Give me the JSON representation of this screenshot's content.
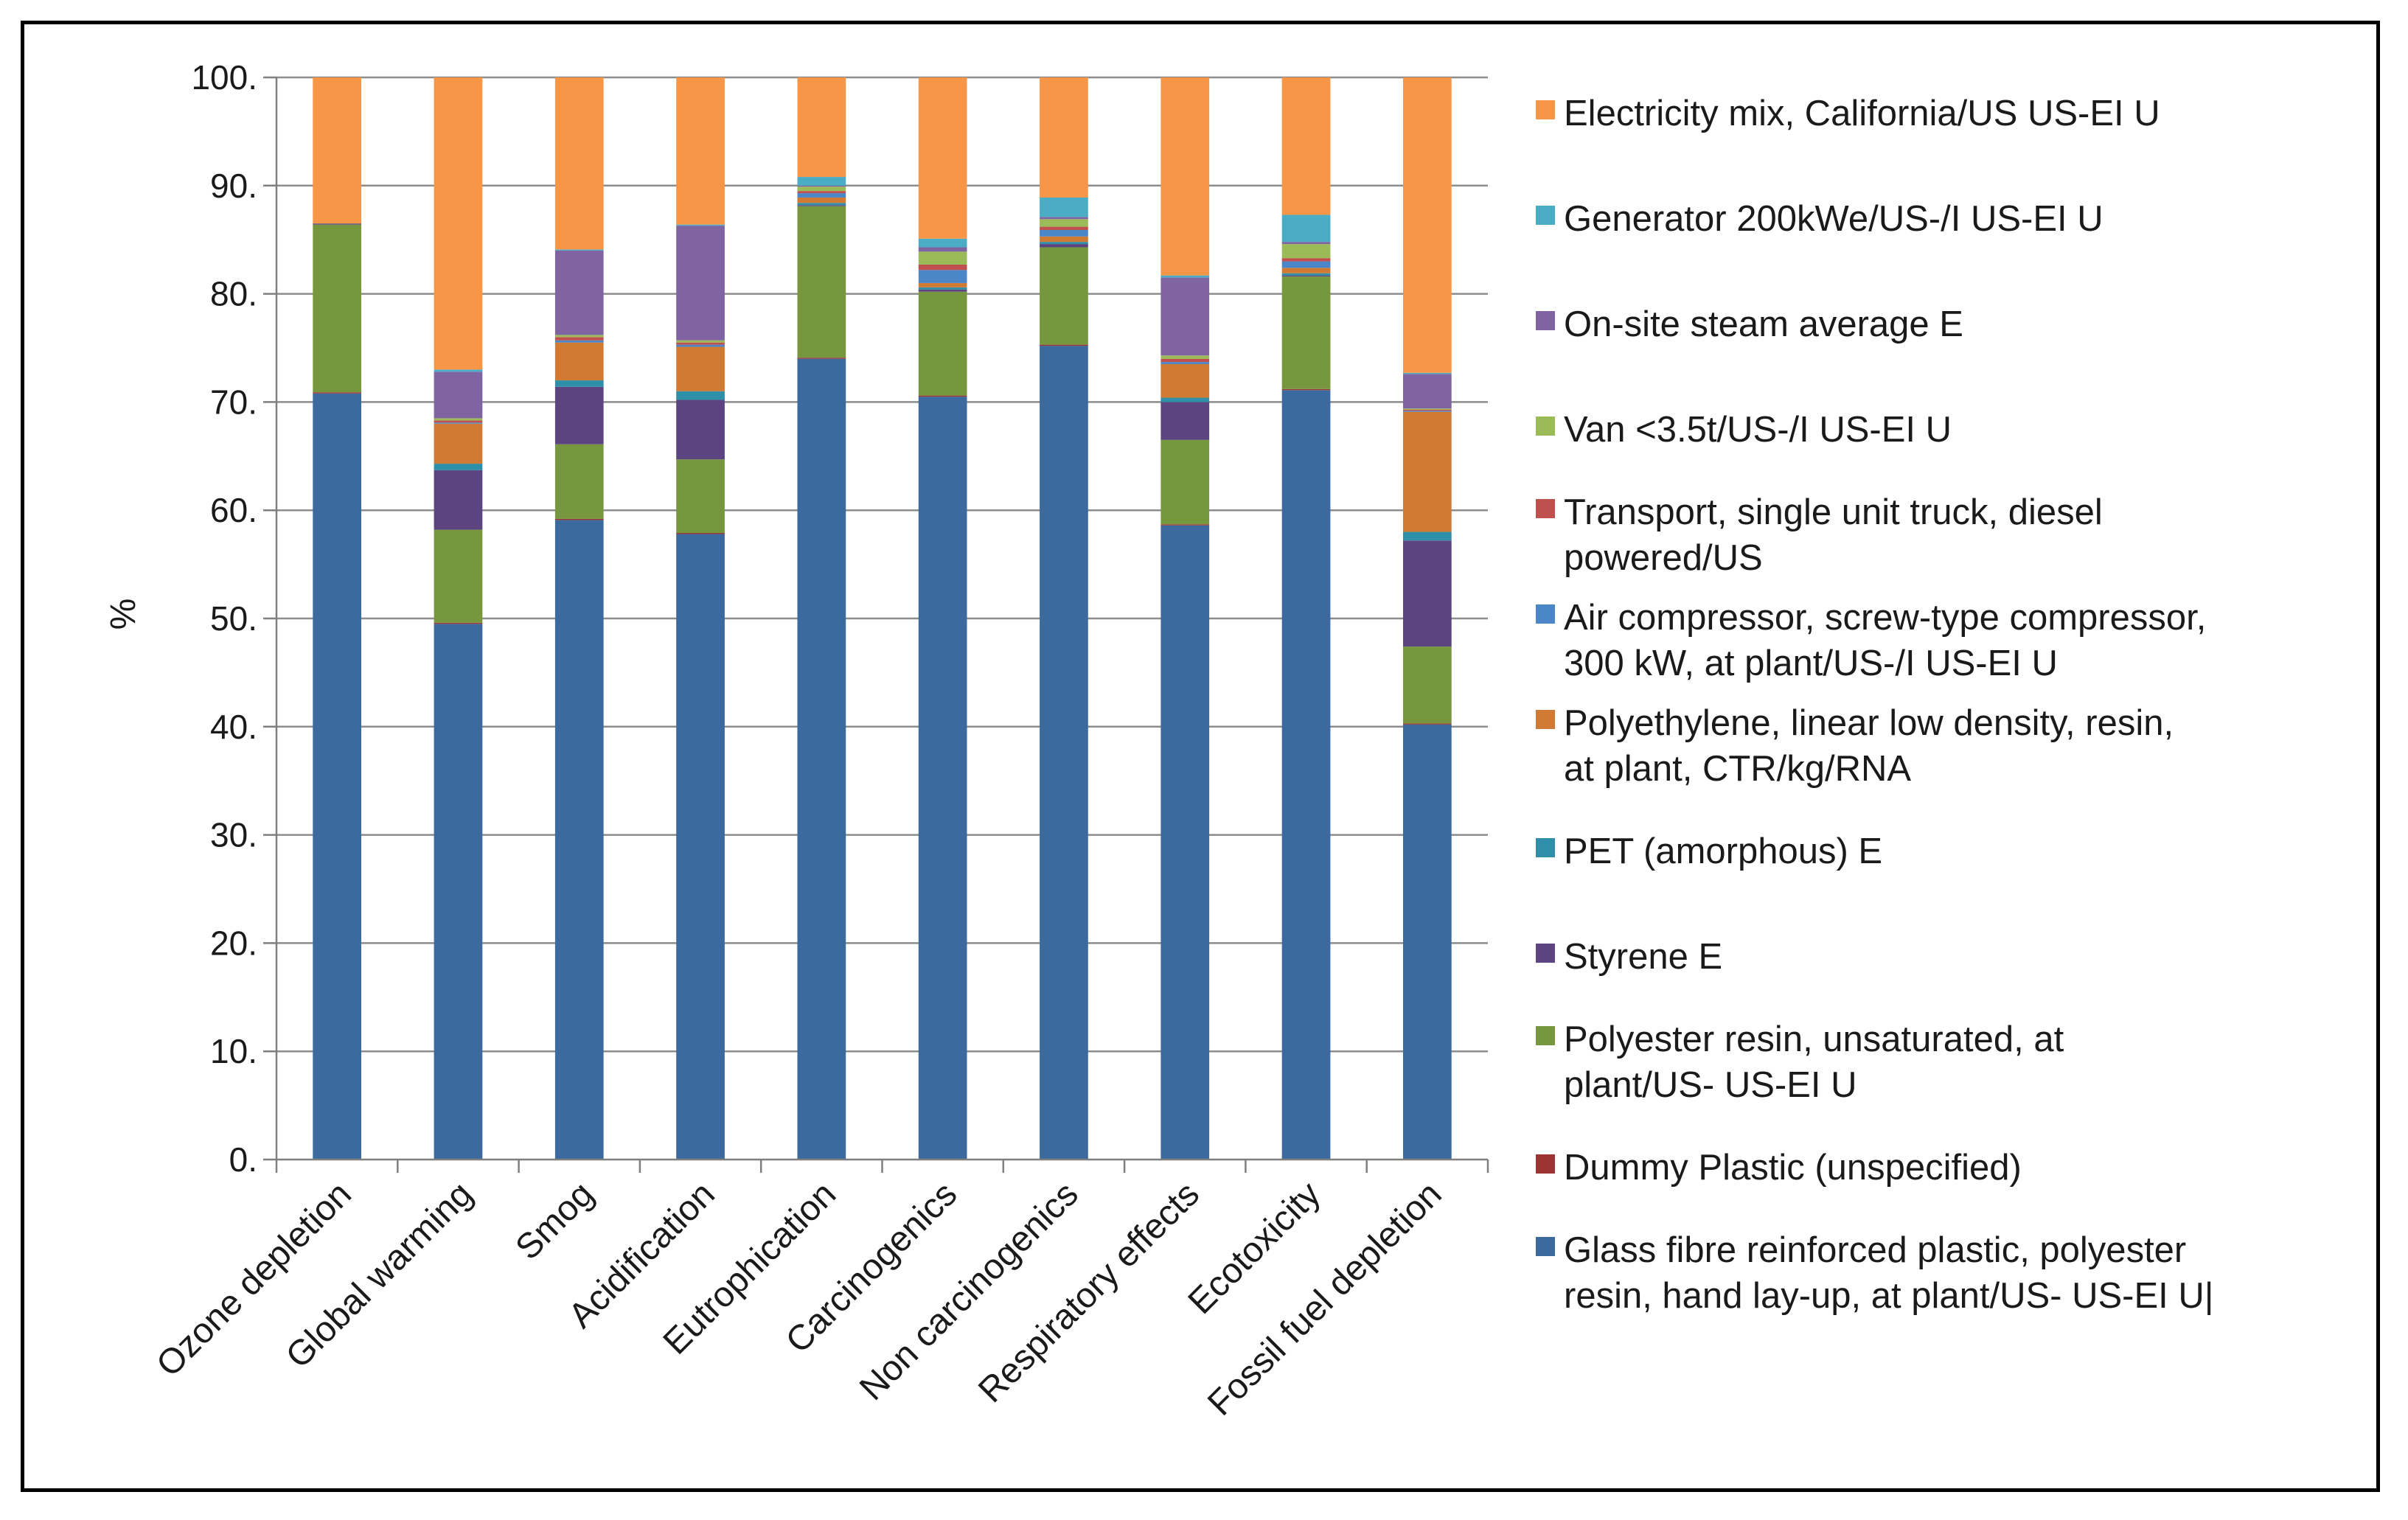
{
  "chart_data": {
    "type": "bar",
    "stacked": true,
    "title": "",
    "xlabel": "",
    "ylabel": "%",
    "ylim": [
      0,
      100
    ],
    "y_ticks": [
      "0.",
      "10.",
      "20.",
      "30.",
      "40.",
      "50.",
      "60.",
      "70.",
      "80.",
      "90.",
      "100."
    ],
    "grid": true,
    "legend_position": "right",
    "categories": [
      "Ozone depletion",
      "Global warming",
      "Smog",
      "Acidification",
      "Eutrophication",
      "Carcinogenics",
      "Non carcinogenics",
      "Respiratory effects",
      "Ecotoxicity",
      "Fossil fuel depletion"
    ],
    "series": [
      {
        "name": "Glass fibre reinforced plastic, polyester resin, hand lay-up, at plant/US- US-EI U|",
        "color": "#3d6a9e",
        "values": [
          70.8,
          49.5,
          59.1,
          57.8,
          74.0,
          70.5,
          75.2,
          58.6,
          71.1,
          40.2
        ]
      },
      {
        "name": "Dummy Plastic (unspecified)",
        "color": "#9c3434",
        "values": [
          0.1,
          0.1,
          0.1,
          0.1,
          0.1,
          0.1,
          0.1,
          0.1,
          0.1,
          0.1
        ]
      },
      {
        "name": "Polyester resin, unsaturated, at plant/US- US-EI U",
        "color": "#77973f",
        "values": [
          15.5,
          8.6,
          6.9,
          6.8,
          14.0,
          9.6,
          9.0,
          7.8,
          10.4,
          7.1
        ]
      },
      {
        "name": "Styrene E",
        "color": "#5c4480",
        "values": [
          0.1,
          5.5,
          5.3,
          5.5,
          0.1,
          0.2,
          0.3,
          3.5,
          0.1,
          9.8
        ]
      },
      {
        "name": "PET (amorphous) E",
        "color": "#2f8ea8",
        "values": [
          0.0,
          0.6,
          0.6,
          0.8,
          0.2,
          0.2,
          0.2,
          0.4,
          0.2,
          0.8
        ]
      },
      {
        "name": "Polyethylene, linear low density, resin, at plant, CTR/kg/RNA",
        "color": "#d17a33",
        "values": [
          0.0,
          3.7,
          3.5,
          4.1,
          0.5,
          0.4,
          0.5,
          3.1,
          0.5,
          11.1
        ]
      },
      {
        "name": "Air compressor, screw-type compressor, 300 kW, at plant/US-/I US-EI U",
        "color": "#4a86c8",
        "values": [
          0.0,
          0.1,
          0.2,
          0.2,
          0.4,
          1.2,
          0.6,
          0.2,
          0.6,
          0.1
        ]
      },
      {
        "name": "Transport, single unit truck, diesel powered/US",
        "color": "#c0504d",
        "values": [
          0.0,
          0.2,
          0.3,
          0.2,
          0.2,
          0.5,
          0.3,
          0.3,
          0.3,
          0.1
        ]
      },
      {
        "name": "Van <3.5t/US-/I US-EI U",
        "color": "#9bbb59",
        "values": [
          0.0,
          0.2,
          0.2,
          0.2,
          0.4,
          1.2,
          0.7,
          0.3,
          1.3,
          0.1
        ]
      },
      {
        "name": "On-site steam average E",
        "color": "#8064a2",
        "values": [
          0.0,
          4.3,
          7.8,
          10.6,
          0.1,
          0.4,
          0.2,
          7.2,
          0.2,
          3.2
        ]
      },
      {
        "name": "Generator 200kWe/US-/I US-EI U",
        "color": "#4bacc6",
        "values": [
          0.0,
          0.2,
          0.1,
          0.1,
          0.8,
          0.8,
          1.8,
          0.2,
          2.5,
          0.1
        ]
      },
      {
        "name": "Electricity mix, California/US US-EI U",
        "color": "#f79646",
        "values": [
          13.5,
          27.0,
          15.9,
          13.6,
          9.2,
          14.9,
          11.1,
          18.3,
          12.7,
          27.3
        ]
      }
    ],
    "legend_order": [
      11,
      10,
      9,
      8,
      7,
      6,
      5,
      4,
      3,
      2,
      1,
      0
    ],
    "legend_lines": [
      [
        "Electricity mix, California/US US-EI U"
      ],
      [
        "Generator 200kWe/US-/I US-EI U"
      ],
      [
        "On-site steam average E"
      ],
      [
        "Van <3.5t/US-/I US-EI U"
      ],
      [
        "Transport, single unit truck, diesel",
        "powered/US"
      ],
      [
        "Air compressor, screw-type compressor,",
        "300 kW, at plant/US-/I US-EI U"
      ],
      [
        "Polyethylene, linear low density, resin,",
        "at plant, CTR/kg/RNA"
      ],
      [
        "PET (amorphous) E"
      ],
      [
        "Styrene E"
      ],
      [
        "Polyester resin, unsaturated, at",
        "plant/US- US-EI U"
      ],
      [
        "Dummy Plastic (unspecified)"
      ],
      [
        "Glass fibre reinforced plastic, polyester",
        "resin, hand lay-up, at plant/US- US-EI U|"
      ]
    ]
  }
}
